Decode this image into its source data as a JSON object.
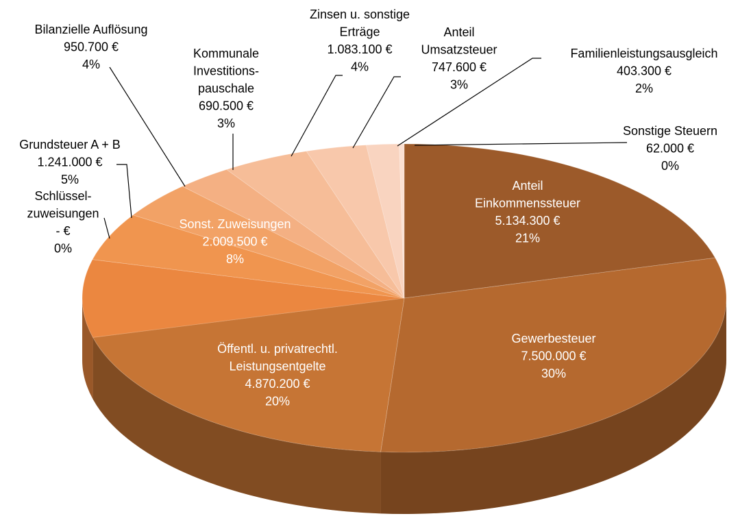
{
  "chart_data": {
    "type": "pie3d",
    "categories": [
      "Anteil\nEinkommenssteuer",
      "Gewerbesteuer",
      "Öffentl. u. privatrechtl.\nLeistungsentgelte",
      "Schlüssel-\nzuweisungen",
      "Sonst. Zuweisungen",
      "Grundsteuer A + B",
      "Bilanzielle Auflösung",
      "Kommunale\nInvestitions-\npauschale",
      "Zinsen u. sonstige\nErträge",
      "Anteil\nUmsatzsteuer",
      "Familienleistungsausgleich",
      "Sonstige Steuern"
    ],
    "values": [
      5134300,
      7500000,
      4870200,
      0,
      2009500,
      1241000,
      950700,
      690500,
      1083100,
      747600,
      403300,
      62000
    ],
    "value_labels": [
      "5.134.300 €",
      "7.500.000 €",
      "4.870.200 €",
      "-   €",
      "2.009.500 €",
      "1.241.000 €",
      "950.700 €",
      "690.500 €",
      "1.083.100 €",
      "747.600 €",
      "403.300 €",
      "62.000 €"
    ],
    "percent_labels": [
      "21%",
      "30%",
      "20%",
      "0%",
      "8%",
      "5%",
      "4%",
      "3%",
      "4%",
      "3%",
      "2%",
      "0%"
    ],
    "colors": [
      "#9c5a2a",
      "#b5692f",
      "#c67535",
      "#d27c38",
      "#eb8740",
      "#f0954f",
      "#f2a266",
      "#f4b083",
      "#f6bd98",
      "#f8c8ab",
      "#f9d4c0",
      "#fbe1d3"
    ]
  }
}
